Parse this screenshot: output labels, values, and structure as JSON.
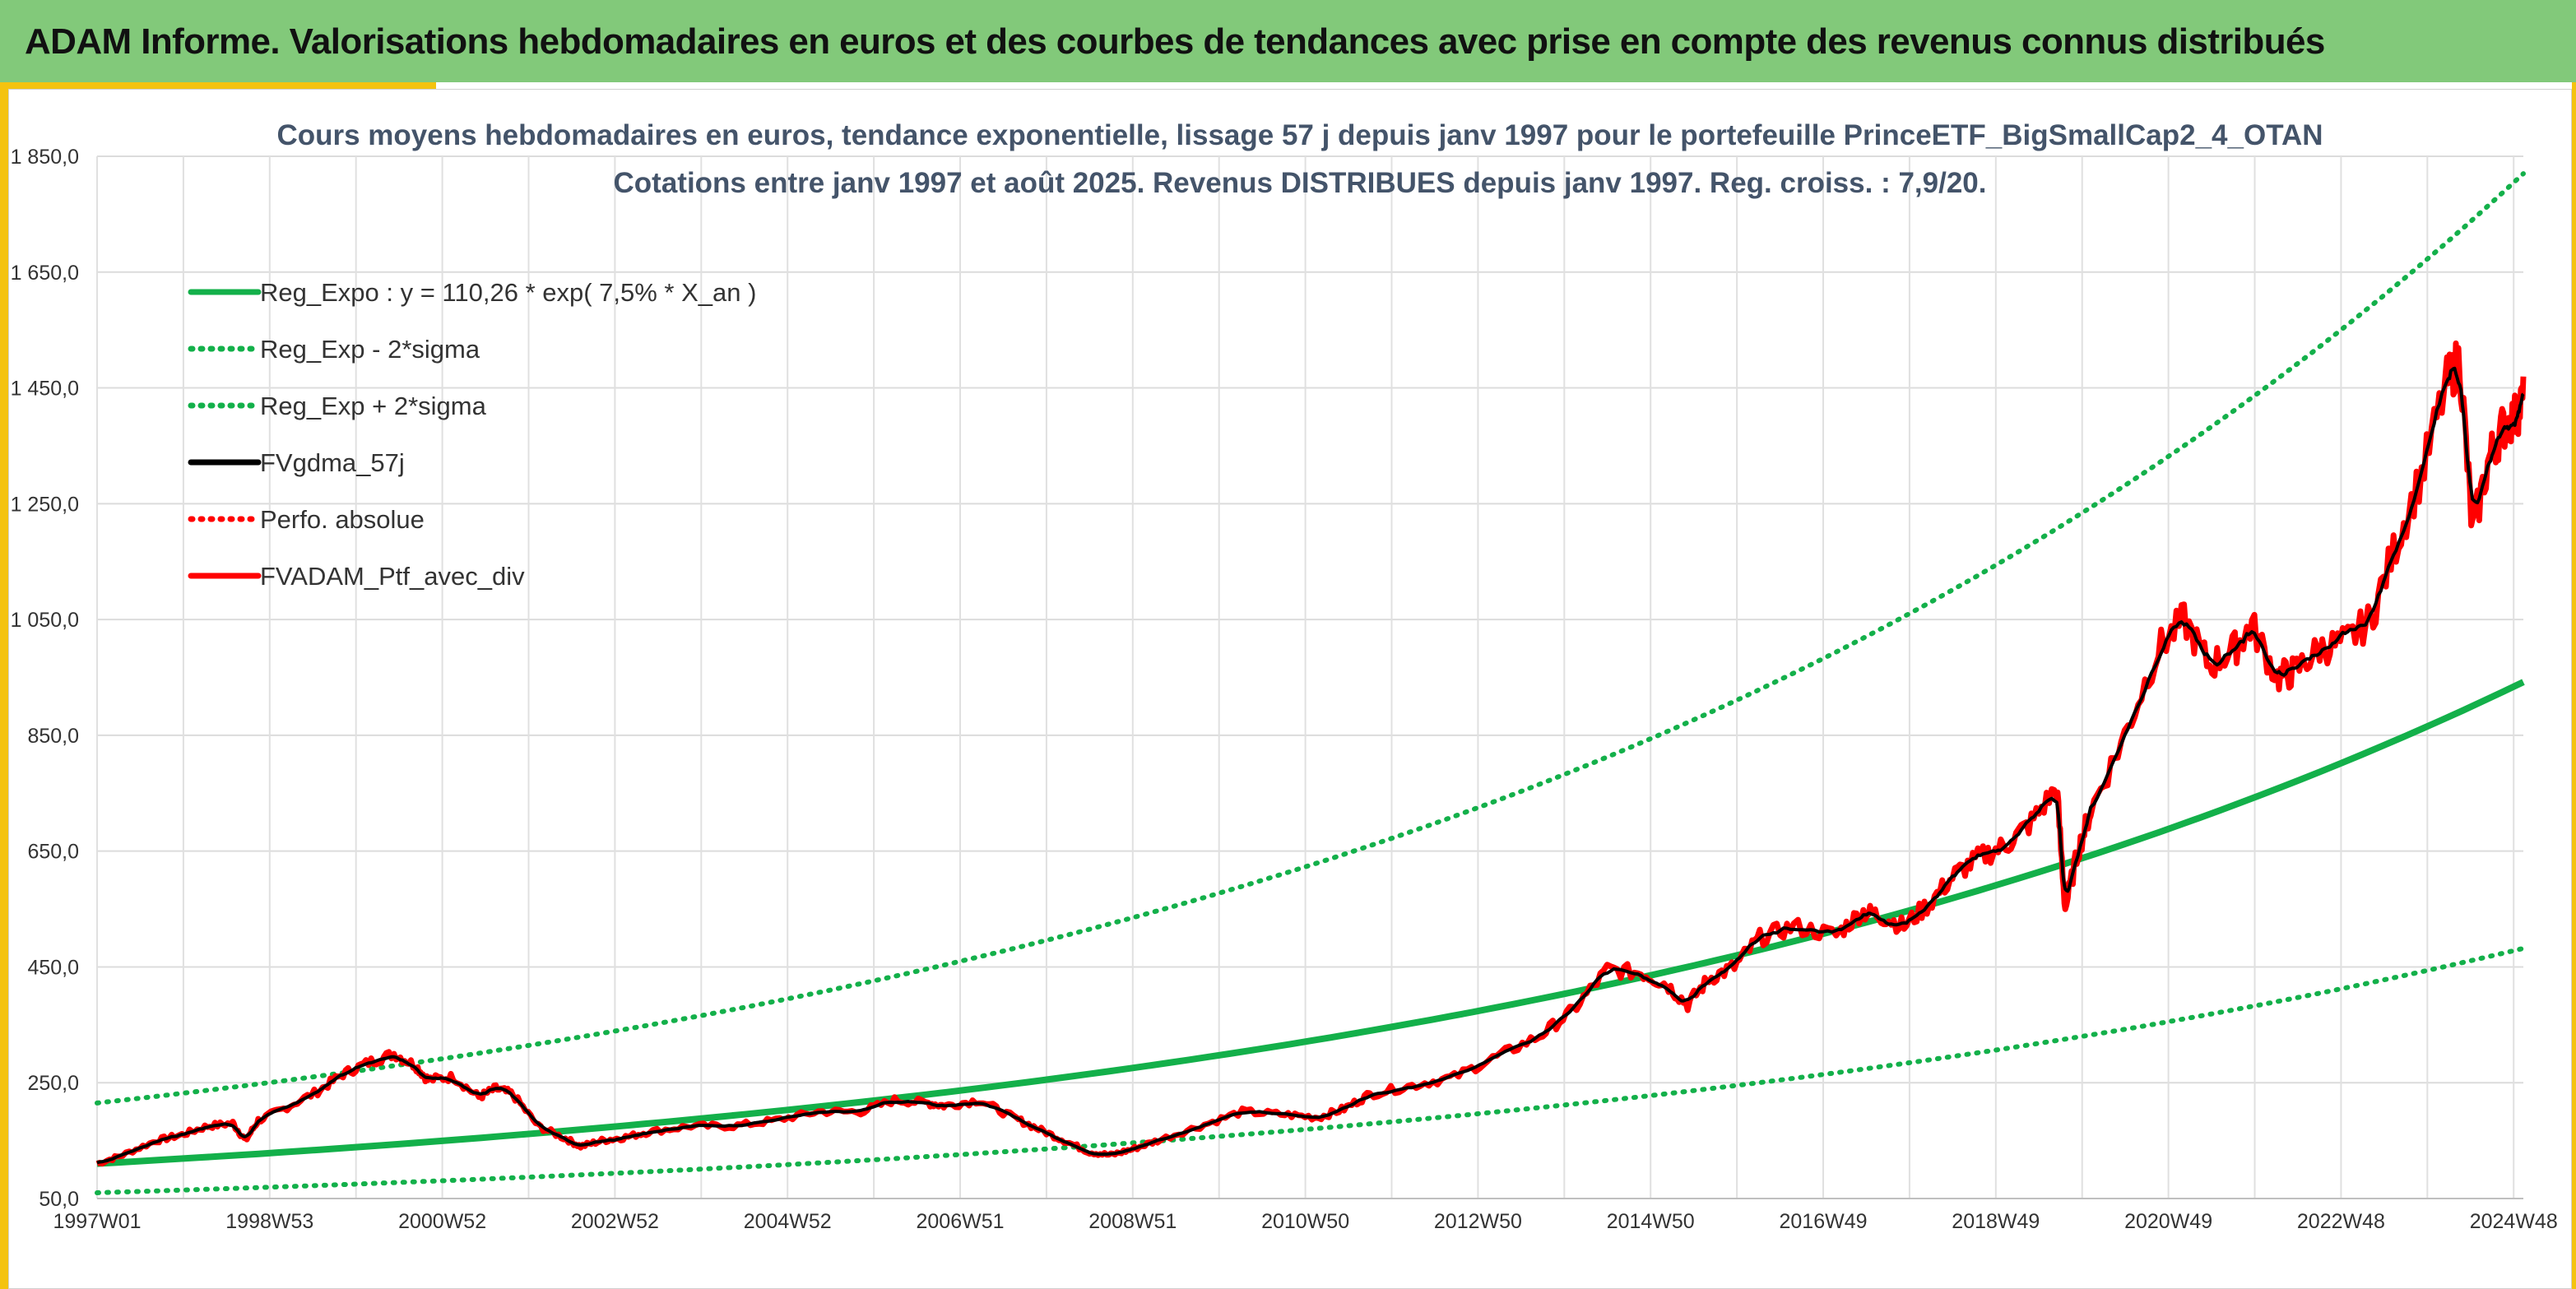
{
  "header": {
    "title": "ADAM Informe. Valorisations hebdomadaires en euros et des courbes de tendances avec prise en compte des revenus connus distribués"
  },
  "colors": {
    "banner": "#82c97a",
    "accent": "#f4c30f",
    "regression": "#13b04a",
    "smoothed": "#000000",
    "portfolio": "#ff0000"
  },
  "chart_data": {
    "type": "line",
    "title": "Cours moyens hebdomadaires en euros, tendance exponentielle, lissage 57 j depuis janv 1997 pour le portefeuille PrinceETF_BigSmallCap2_4_OTAN",
    "subtitle": "Cotations entre janv 1997 et août 2025. Revenus DISTRIBUES depuis janv 1997. Reg. croiss. : 7,9/20.",
    "xlabel": "",
    "ylabel": "",
    "x_range": [
      1997.0,
      2025.6
    ],
    "ylim": [
      50,
      1850
    ],
    "y_ticks": [
      "50,0",
      "250,0",
      "450,0",
      "650,0",
      "850,0",
      "1 050,0",
      "1 250,0",
      "1 450,0",
      "1 650,0",
      "1 850,0"
    ],
    "x_ticks": [
      "1997W01",
      "1998W53",
      "2000W52",
      "2002W52",
      "2004W52",
      "2006W51",
      "2008W51",
      "2010W50",
      "2012W50",
      "2014W50",
      "2016W49",
      "2018W49",
      "2020W49",
      "2022W48",
      "2024W48"
    ],
    "grid": true,
    "legend_position": "top-left",
    "regression": {
      "a": 110.26,
      "rate": 0.075,
      "label": "Reg_Expo : y = 110,26 * exp( 7,5% *  X_an )"
    },
    "series": [
      {
        "name": "Reg_Expo : y = 110,26 * exp( 7,5% *  X_an )",
        "style": "solid",
        "color": "#13b04a",
        "x": [
          1997.0,
          2025.6
        ],
        "values": [
          110.26,
          942
        ]
      },
      {
        "name": "Reg_Exp - 2*sigma",
        "style": "dotted",
        "color": "#13b04a",
        "x": [
          1997.0,
          2025.6
        ],
        "values": [
          60,
          482
        ]
      },
      {
        "name": "Reg_Exp + 2*sigma",
        "style": "dotted",
        "color": "#13b04a",
        "x": [
          1997.0,
          2025.6
        ],
        "values": [
          215,
          1820
        ]
      },
      {
        "name": "FVgdma_57j",
        "style": "solid",
        "color": "#000000"
      },
      {
        "name": "Perfo. absolue",
        "style": "dotted",
        "color": "#ff0000"
      },
      {
        "name": "FVADAM_Ptf_avec_div",
        "style": "solid",
        "color": "#ff0000",
        "x": [
          1997.0,
          1997.3,
          1997.7,
          1998.0,
          1998.3,
          1998.6,
          1998.75,
          1998.9,
          1999.2,
          1999.6,
          1999.9,
          2000.2,
          2000.5,
          2000.75,
          2000.9,
          2001.2,
          2001.5,
          2001.7,
          2001.9,
          2002.2,
          2002.5,
          2002.7,
          2002.95,
          2003.2,
          2003.5,
          2004.0,
          2004.5,
          2005.0,
          2005.5,
          2006.0,
          2006.4,
          2006.8,
          2007.0,
          2007.4,
          2007.8,
          2008.1,
          2008.4,
          2008.7,
          2008.95,
          2009.2,
          2009.5,
          2010.0,
          2010.5,
          2011.0,
          2011.4,
          2011.7,
          2012.0,
          2012.5,
          2013.0,
          2013.5,
          2014.0,
          2014.4,
          2014.8,
          2015.2,
          2015.5,
          2015.75,
          2016.0,
          2016.3,
          2016.6,
          2017.0,
          2017.5,
          2017.8,
          2018.0,
          2018.3,
          2018.6,
          2018.9,
          2019.2,
          2019.5,
          2019.8,
          2020.1,
          2020.2,
          2020.35,
          2020.5,
          2020.9,
          2021.3,
          2021.6,
          2021.9,
          2022.2,
          2022.4,
          2022.7,
          2022.9,
          2023.2,
          2023.5,
          2023.8,
          2024.1,
          2024.4,
          2024.7,
          2024.85,
          2025.0,
          2025.2,
          2025.35,
          2025.5,
          2025.6
        ],
        "values": [
          110,
          125,
          150,
          160,
          175,
          180,
          150,
          185,
          205,
          235,
          265,
          285,
          300,
          280,
          255,
          260,
          225,
          240,
          230,
          175,
          155,
          140,
          150,
          155,
          165,
          175,
          175,
          185,
          200,
          200,
          220,
          215,
          210,
          220,
          190,
          170,
          150,
          130,
          125,
          135,
          150,
          175,
          200,
          195,
          190,
          205,
          230,
          245,
          260,
          295,
          330,
          375,
          445,
          440,
          420,
          385,
          430,
          450,
          500,
          520,
          505,
          545,
          540,
          520,
          560,
          610,
          640,
          660,
          700,
          760,
          550,
          650,
          720,
          850,
          1000,
          1050,
          970,
          1000,
          1040,
          950,
          960,
          1000,
          1010,
          1050,
          1180,
          1300,
          1460,
          1500,
          1200,
          1330,
          1380,
          1400,
          1430
        ]
      }
    ]
  }
}
